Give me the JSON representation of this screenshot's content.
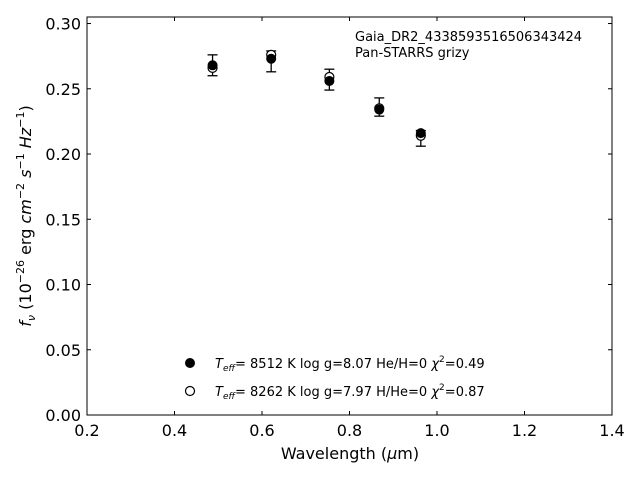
{
  "chart_data": {
    "type": "scatter",
    "xlabel": "Wavelength (μm)",
    "ylabel": "f_ν (10^-26 erg cm^-2 s^-1 Hz^-1)",
    "xlim": [
      0.2,
      1.4
    ],
    "ylim": [
      0.0,
      0.305
    ],
    "xticks": [
      0.2,
      0.4,
      0.6,
      0.8,
      1.0,
      1.2,
      1.4
    ],
    "xtick_labels": [
      "0.2",
      "0.4",
      "0.6",
      "0.8",
      "1.0",
      "1.2",
      "1.4"
    ],
    "yticks": [
      0.0,
      0.05,
      0.1,
      0.15,
      0.2,
      0.25,
      0.3
    ],
    "ytick_labels": [
      "0.00",
      "0.05",
      "0.10",
      "0.15",
      "0.20",
      "0.25",
      "0.30"
    ],
    "grid": false,
    "annotation": [
      "Gaia_DR2_4338593516506343424",
      "Pan-STARRS grizy"
    ],
    "observed": {
      "x": [
        0.487,
        0.621,
        0.754,
        0.868,
        0.963
      ],
      "y": [
        0.268,
        0.271,
        0.257,
        0.236,
        0.212
      ],
      "yerr": [
        0.008,
        0.008,
        0.008,
        0.007,
        0.006
      ]
    },
    "series": [
      {
        "marker": "filled-circle",
        "label": {
          "teff": "8512 K",
          "logg": "8.07",
          "comp": "He/H=0",
          "chi2": "0.49"
        },
        "x": [
          0.487,
          0.621,
          0.754,
          0.868,
          0.963
        ],
        "y": [
          0.268,
          0.273,
          0.256,
          0.234,
          0.216
        ]
      },
      {
        "marker": "open-circle",
        "label": {
          "teff": "8262 K",
          "logg": "7.97",
          "comp": "H/He=0",
          "chi2": "0.87"
        },
        "x": [
          0.487,
          0.621,
          0.754,
          0.868,
          0.963
        ],
        "y": [
          0.266,
          0.276,
          0.259,
          0.235,
          0.214
        ]
      }
    ],
    "legend": {
      "placement": "lower-center"
    }
  }
}
